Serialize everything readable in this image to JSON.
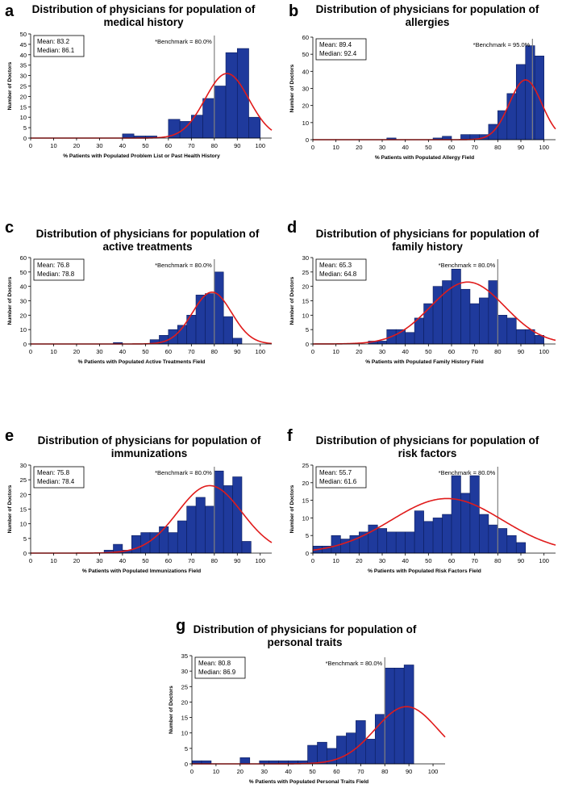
{
  "chart_data": [
    {
      "id": "a",
      "type": "bar",
      "letter": "a",
      "title_lines": [
        "Distribution of physicians for population of",
        "medical history"
      ],
      "xlabel": "% Patients with Populated Problem List or Past Health History",
      "ylabel": "Number of Doctors",
      "xlim": [
        0,
        105
      ],
      "ylim": [
        0,
        50
      ],
      "xticks": [
        0,
        10,
        20,
        30,
        40,
        50,
        60,
        70,
        80,
        90,
        100
      ],
      "yticks": [
        0,
        5,
        10,
        15,
        20,
        25,
        30,
        35,
        40,
        45,
        50
      ],
      "bin_width": 5,
      "bars": [
        {
          "x": 45,
          "value": 2
        },
        {
          "x": 50,
          "value": 1
        },
        {
          "x": 55,
          "value": 1
        },
        {
          "x": 65,
          "value": 9
        },
        {
          "x": 70,
          "value": 8
        },
        {
          "x": 75,
          "value": 11
        },
        {
          "x": 80,
          "value": 19
        },
        {
          "x": 85,
          "value": 25
        },
        {
          "x": 90,
          "value": 41
        },
        {
          "x": 95,
          "value": 43
        },
        {
          "x": 100,
          "value": 10
        }
      ],
      "curve": {
        "mean": 85.5,
        "sd": 9.5,
        "peak": 31
      },
      "stats_lines": [
        "Mean: 83.2",
        "Median: 86.1"
      ],
      "benchmark_label": "*Benchmark = 80.0%",
      "benchmark_value": 80
    },
    {
      "id": "b",
      "type": "bar",
      "letter": "b",
      "title_lines": [
        "Distribution of physicians for population of",
        "allergies"
      ],
      "xlabel": "% Patients with Populated Allergy Field",
      "ylabel": "Number of Doctors",
      "xlim": [
        0,
        105
      ],
      "ylim": [
        0,
        60
      ],
      "xticks": [
        0,
        10,
        20,
        30,
        40,
        50,
        60,
        70,
        80,
        90,
        100
      ],
      "yticks": [
        0,
        10,
        20,
        30,
        40,
        50,
        60
      ],
      "bin_width": 4,
      "bars": [
        {
          "x": 36,
          "value": 1
        },
        {
          "x": 56,
          "value": 1
        },
        {
          "x": 60,
          "value": 2
        },
        {
          "x": 68,
          "value": 3
        },
        {
          "x": 72,
          "value": 3
        },
        {
          "x": 76,
          "value": 3
        },
        {
          "x": 80,
          "value": 9
        },
        {
          "x": 84,
          "value": 17
        },
        {
          "x": 88,
          "value": 27
        },
        {
          "x": 92,
          "value": 44
        },
        {
          "x": 96,
          "value": 55
        },
        {
          "x": 100,
          "value": 49
        }
      ],
      "curve": {
        "mean": 92,
        "sd": 7,
        "peak": 35
      },
      "stats_lines": [
        "Mean: 89.4",
        "Median: 92.4"
      ],
      "benchmark_label": "*Benchmark = 95.0%",
      "benchmark_value": 95
    },
    {
      "id": "c",
      "type": "bar",
      "letter": "c",
      "title_lines": [
        "Distribution of physicians for population of",
        "active treatments"
      ],
      "xlabel": "% Patients with Populated Active Treatments Field",
      "ylabel": "Number of Doctors",
      "xlim": [
        0,
        105
      ],
      "ylim": [
        0,
        60
      ],
      "xticks": [
        0,
        10,
        20,
        30,
        40,
        50,
        60,
        70,
        80,
        90,
        100
      ],
      "yticks": [
        0,
        10,
        20,
        30,
        40,
        50,
        60
      ],
      "bin_width": 4,
      "bars": [
        {
          "x": 40,
          "value": 1
        },
        {
          "x": 56,
          "value": 3
        },
        {
          "x": 60,
          "value": 6
        },
        {
          "x": 64,
          "value": 10
        },
        {
          "x": 68,
          "value": 13
        },
        {
          "x": 72,
          "value": 20
        },
        {
          "x": 76,
          "value": 34
        },
        {
          "x": 80,
          "value": 35
        },
        {
          "x": 84,
          "value": 50
        },
        {
          "x": 88,
          "value": 19
        },
        {
          "x": 92,
          "value": 4
        }
      ],
      "curve": {
        "mean": 79,
        "sd": 8.5,
        "peak": 36
      },
      "stats_lines": [
        "Mean: 76.8",
        "Median: 78.8"
      ],
      "benchmark_label": "*Benchmark = 80.0%",
      "benchmark_value": 80
    },
    {
      "id": "d",
      "type": "bar",
      "letter": "d",
      "title_lines": [
        "Distribution of physicians for population of",
        "family history"
      ],
      "xlabel": "% Patients with Populated Family History Field",
      "ylabel": "Number of Doctors",
      "xlim": [
        0,
        105
      ],
      "ylim": [
        0,
        30
      ],
      "xticks": [
        0,
        10,
        20,
        30,
        40,
        50,
        60,
        70,
        80,
        90,
        100
      ],
      "yticks": [
        0,
        5,
        10,
        15,
        20,
        25,
        30
      ],
      "bin_width": 4,
      "bars": [
        {
          "x": 28,
          "value": 1
        },
        {
          "x": 32,
          "value": 1
        },
        {
          "x": 36,
          "value": 5
        },
        {
          "x": 40,
          "value": 5
        },
        {
          "x": 44,
          "value": 4
        },
        {
          "x": 48,
          "value": 9
        },
        {
          "x": 52,
          "value": 14
        },
        {
          "x": 56,
          "value": 20
        },
        {
          "x": 60,
          "value": 22
        },
        {
          "x": 64,
          "value": 26
        },
        {
          "x": 68,
          "value": 19
        },
        {
          "x": 72,
          "value": 14
        },
        {
          "x": 76,
          "value": 16
        },
        {
          "x": 80,
          "value": 22
        },
        {
          "x": 84,
          "value": 10
        },
        {
          "x": 88,
          "value": 9
        },
        {
          "x": 92,
          "value": 5
        },
        {
          "x": 96,
          "value": 5
        },
        {
          "x": 100,
          "value": 3
        }
      ],
      "curve": {
        "mean": 67,
        "sd": 16,
        "peak": 21.5
      },
      "stats_lines": [
        "Mean: 65.3",
        "Median: 64.8"
      ],
      "benchmark_label": "*Benchmark = 80.0%",
      "benchmark_value": 80
    },
    {
      "id": "e",
      "type": "bar",
      "letter": "e",
      "title_lines": [
        "Distribution of physicians for population of",
        "immunizations"
      ],
      "xlabel": "% Patients with Populated Immunizations Field",
      "ylabel": "Number of Doctors",
      "xlim": [
        0,
        105
      ],
      "ylim": [
        0,
        30
      ],
      "xticks": [
        0,
        10,
        20,
        30,
        40,
        50,
        60,
        70,
        80,
        90,
        100
      ],
      "yticks": [
        0,
        5,
        10,
        15,
        20,
        25,
        30
      ],
      "bin_width": 4,
      "bars": [
        {
          "x": 36,
          "value": 1
        },
        {
          "x": 40,
          "value": 3
        },
        {
          "x": 44,
          "value": 1
        },
        {
          "x": 48,
          "value": 6
        },
        {
          "x": 52,
          "value": 7
        },
        {
          "x": 56,
          "value": 7
        },
        {
          "x": 60,
          "value": 9
        },
        {
          "x": 64,
          "value": 7
        },
        {
          "x": 68,
          "value": 11
        },
        {
          "x": 72,
          "value": 16
        },
        {
          "x": 76,
          "value": 19
        },
        {
          "x": 80,
          "value": 16
        },
        {
          "x": 84,
          "value": 28
        },
        {
          "x": 88,
          "value": 23
        },
        {
          "x": 92,
          "value": 26
        },
        {
          "x": 96,
          "value": 4
        }
      ],
      "curve": {
        "mean": 78,
        "sd": 14,
        "peak": 23
      },
      "stats_lines": [
        "Mean: 75.8",
        "Median: 78.4"
      ],
      "benchmark_label": "*Benchmark = 80.0%",
      "benchmark_value": 80
    },
    {
      "id": "f",
      "type": "bar",
      "letter": "f",
      "title_lines": [
        "Distribution of physicians for population of",
        "risk factors"
      ],
      "xlabel": "% Patients with Populated Risk Factors Field",
      "ylabel": "Number of Doctors",
      "xlim": [
        0,
        105
      ],
      "ylim": [
        0,
        25
      ],
      "xticks": [
        0,
        10,
        20,
        30,
        40,
        50,
        60,
        70,
        80,
        90,
        100
      ],
      "yticks": [
        0,
        5,
        10,
        15,
        20,
        25
      ],
      "bin_width": 4,
      "bars": [
        {
          "x": 4,
          "value": 2
        },
        {
          "x": 8,
          "value": 2
        },
        {
          "x": 12,
          "value": 5
        },
        {
          "x": 16,
          "value": 4
        },
        {
          "x": 20,
          "value": 5
        },
        {
          "x": 24,
          "value": 6
        },
        {
          "x": 28,
          "value": 8
        },
        {
          "x": 32,
          "value": 7
        },
        {
          "x": 36,
          "value": 6
        },
        {
          "x": 40,
          "value": 6
        },
        {
          "x": 44,
          "value": 6
        },
        {
          "x": 48,
          "value": 12
        },
        {
          "x": 52,
          "value": 9
        },
        {
          "x": 56,
          "value": 10
        },
        {
          "x": 60,
          "value": 11
        },
        {
          "x": 64,
          "value": 22
        },
        {
          "x": 68,
          "value": 17
        },
        {
          "x": 72,
          "value": 22
        },
        {
          "x": 76,
          "value": 11
        },
        {
          "x": 80,
          "value": 8
        },
        {
          "x": 84,
          "value": 7
        },
        {
          "x": 88,
          "value": 5
        },
        {
          "x": 92,
          "value": 3
        }
      ],
      "curve": {
        "mean": 58,
        "sd": 24,
        "peak": 15.5
      },
      "stats_lines": [
        "Mean: 55.7",
        "Median: 61.6"
      ],
      "benchmark_label": "*Benchmark = 80.0%",
      "benchmark_value": 80
    },
    {
      "id": "g",
      "type": "bar",
      "letter": "g",
      "title_lines": [
        "Distribution of physicians for population of",
        "personal traits"
      ],
      "xlabel": "% Patients with Populated Personal Traits Field",
      "ylabel": "Number of Doctors",
      "xlim": [
        0,
        105
      ],
      "ylim": [
        0,
        35
      ],
      "xticks": [
        0,
        10,
        20,
        30,
        40,
        50,
        60,
        70,
        80,
        90,
        100
      ],
      "yticks": [
        0,
        5,
        10,
        15,
        20,
        25,
        30,
        35
      ],
      "bin_width": 4,
      "bars": [
        {
          "x": 4,
          "value": 1
        },
        {
          "x": 8,
          "value": 1
        },
        {
          "x": 24,
          "value": 2
        },
        {
          "x": 32,
          "value": 1
        },
        {
          "x": 36,
          "value": 1
        },
        {
          "x": 40,
          "value": 1
        },
        {
          "x": 44,
          "value": 1
        },
        {
          "x": 48,
          "value": 1
        },
        {
          "x": 52,
          "value": 6
        },
        {
          "x": 56,
          "value": 7
        },
        {
          "x": 60,
          "value": 5
        },
        {
          "x": 64,
          "value": 9
        },
        {
          "x": 68,
          "value": 10
        },
        {
          "x": 72,
          "value": 14
        },
        {
          "x": 76,
          "value": 8
        },
        {
          "x": 80,
          "value": 16
        },
        {
          "x": 84,
          "value": 31
        },
        {
          "x": 88,
          "value": 31
        },
        {
          "x": 92,
          "value": 32
        }
      ],
      "curve": {
        "mean": 89,
        "sd": 13,
        "peak": 18.5
      },
      "stats_lines": [
        "Mean: 80.8",
        "Median: 86.9"
      ],
      "benchmark_label": "*Benchmark = 80.0%",
      "benchmark_value": 80
    }
  ],
  "colors": {
    "bar_fill": "#1f3a9c",
    "bar_stroke": "#0b1d5e",
    "curve": "#e01b1b",
    "benchmark": "#808080",
    "axis": "#000000"
  }
}
